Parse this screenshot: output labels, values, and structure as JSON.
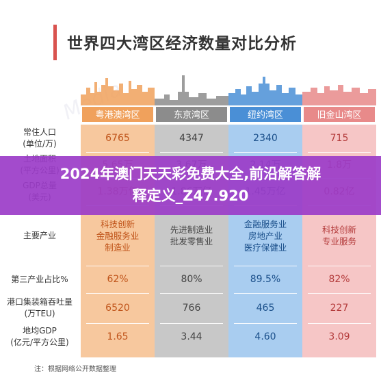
{
  "title": "世界四大湾区经济数量对比分析",
  "watermark": "Media",
  "banner": {
    "line1": "2024年澳门天天彩免费大全,前沿解答解",
    "line2": "释定义_Z47.920"
  },
  "columns": [
    {
      "name": "粤港澳湾区",
      "color": "#f0a15c",
      "cell_bg": "#f7c89e",
      "text_color": "#c0541a"
    },
    {
      "name": "东京湾区",
      "color": "#8c8c8c",
      "cell_bg": "#c8c8c8",
      "text_color": "#444444"
    },
    {
      "name": "纽约湾区",
      "color": "#4a8fd6",
      "cell_bg": "#a9cdf0",
      "text_color": "#1a4f8a"
    },
    {
      "name": "旧金山湾区",
      "color": "#e88a8a",
      "cell_bg": "#f6c6c6",
      "text_color": "#b33a3a"
    }
  ],
  "rows": [
    {
      "label1": "常住人口",
      "label2": "(单位/万)",
      "values": [
        "6765",
        "4347",
        "2340",
        "715"
      ]
    },
    {
      "label1": "土地面积",
      "label2": "(平方公里)",
      "values": [
        "5.65万",
        "3.67万",
        "2.14万",
        "1.8万"
      ]
    },
    {
      "label1": "GDP总量",
      "label2": "(美元)",
      "values": [
        "1.38万亿",
        "1.86万亿",
        "1.45万亿",
        "0.82亿"
      ]
    },
    {
      "label1": "主要产业",
      "label2": "",
      "values": [
        "科技创新\n金融服务业\n制造业",
        "先进制造业\n批发零售业",
        "金融服务业\n房地产业\n医疗保健业",
        "科技创新\n专业服务"
      ]
    },
    {
      "label1": "第三产业占比%",
      "label2": "",
      "values": [
        "62%",
        "80%",
        "89.5%",
        "82%"
      ]
    },
    {
      "label1": "港口集装箱吞吐量",
      "label2": "(万TEU)",
      "values": [
        "6520",
        "766",
        "465",
        "227"
      ]
    },
    {
      "label1": "地均GDP",
      "label2": "(亿元/平方公里)",
      "values": [
        "1.65",
        "3.44",
        "4.60",
        "3.09"
      ]
    }
  ],
  "footnote": "注：根据网络公开数据整理"
}
